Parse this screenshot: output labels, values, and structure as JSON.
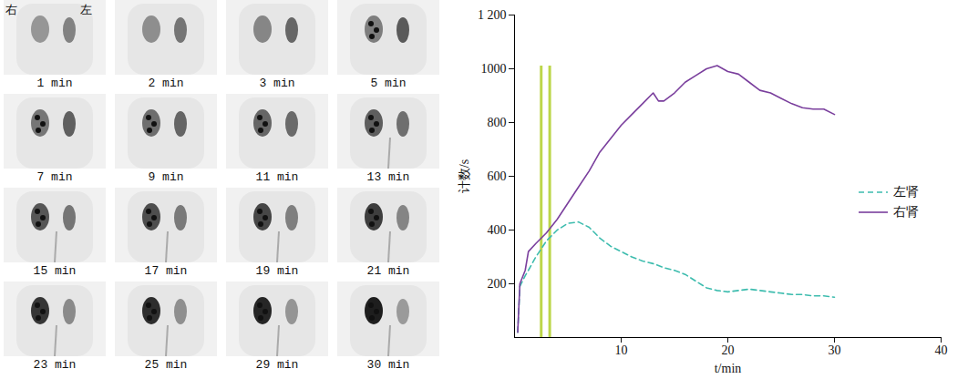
{
  "panels": {
    "orientation_labels": [
      "右",
      "左"
    ],
    "times": [
      "1 min",
      "2 min",
      "3 min",
      "5 min",
      "7 min",
      "9 min",
      "11 min",
      "13 min",
      "15 min",
      "17 min",
      "19 min",
      "21 min",
      "23 min",
      "25 min",
      "29 min",
      "30 min"
    ]
  },
  "chart_data": {
    "type": "line",
    "x_label": "t/min",
    "y_label": "计数/s",
    "xlim": [
      0,
      40
    ],
    "xticks": [
      10,
      20,
      30,
      40
    ],
    "ylim": [
      0,
      1200
    ],
    "yticks": [
      200,
      400,
      600,
      800,
      1000,
      {
        "value": 1200,
        "label": "1 200"
      }
    ],
    "legend": "right",
    "x": [
      0.3,
      0.5,
      1,
      1.3,
      2,
      3,
      4,
      5,
      6,
      7,
      8,
      9,
      10,
      11,
      12,
      13,
      13.5,
      14,
      15,
      16,
      17,
      18,
      19,
      20,
      21,
      22,
      23,
      24,
      25,
      26,
      27,
      28,
      29,
      30
    ],
    "series": [
      {
        "name": "左肾",
        "color": "#3dbcae",
        "line_style": "dashed",
        "values": [
          20,
          190,
          230,
          250,
          300,
          360,
          400,
          425,
          430,
          410,
          370,
          340,
          320,
          300,
          285,
          275,
          268,
          260,
          250,
          235,
          210,
          185,
          175,
          170,
          175,
          180,
          175,
          170,
          165,
          160,
          160,
          155,
          155,
          150
        ]
      },
      {
        "name": "右肾",
        "color": "#7a3f9d",
        "line_style": "solid",
        "values": [
          20,
          200,
          250,
          320,
          350,
          390,
          440,
          500,
          560,
          620,
          690,
          740,
          790,
          830,
          870,
          910,
          880,
          880,
          910,
          950,
          975,
          1000,
          1012,
          990,
          980,
          950,
          920,
          910,
          890,
          870,
          855,
          850,
          850,
          830
        ]
      }
    ],
    "vlines": {
      "x": [
        2.5,
        3.3
      ],
      "ymax": 1010,
      "color": "#bcd64a"
    }
  }
}
